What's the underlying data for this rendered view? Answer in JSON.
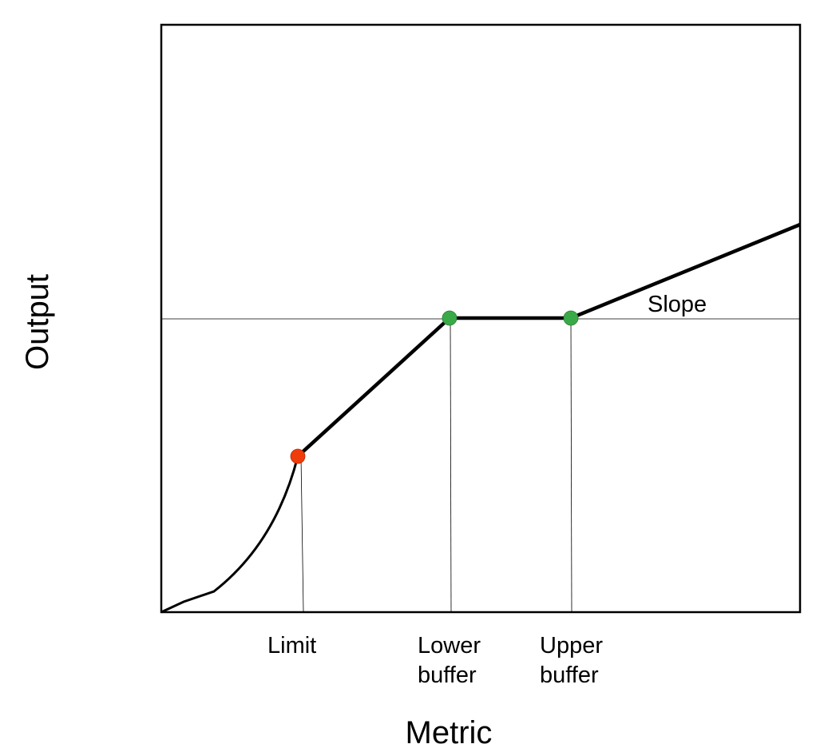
{
  "labels": {
    "y_axis": "Output",
    "x_axis": "Metric",
    "slope": "Slope",
    "limit": "Limit",
    "lower_buffer": [
      "Lower",
      "buffer"
    ],
    "upper_buffer": [
      "Upper",
      "buffer"
    ]
  },
  "colors": {
    "limit_point": "#f03c0a",
    "buffer_point": "#3aaa48",
    "line": "#000000"
  }
}
